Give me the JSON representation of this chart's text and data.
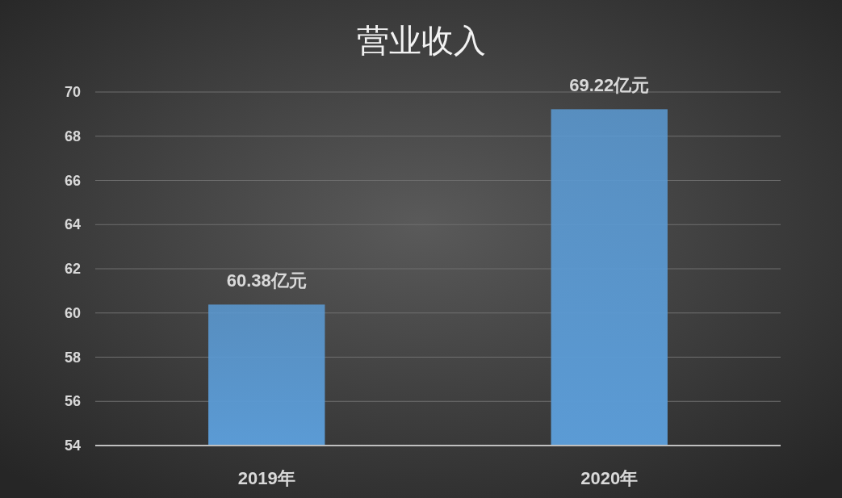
{
  "chart_data": {
    "type": "bar",
    "title": "营业收入",
    "categories": [
      "2019年",
      "2020年"
    ],
    "values": [
      60.38,
      69.22
    ],
    "value_labels": [
      "60.38亿元",
      "69.22亿元"
    ],
    "color": "#5b9bd5",
    "ylim": [
      54,
      70
    ],
    "yticks": [
      54,
      56,
      58,
      60,
      62,
      64,
      66,
      68,
      70
    ],
    "grid": "y"
  }
}
